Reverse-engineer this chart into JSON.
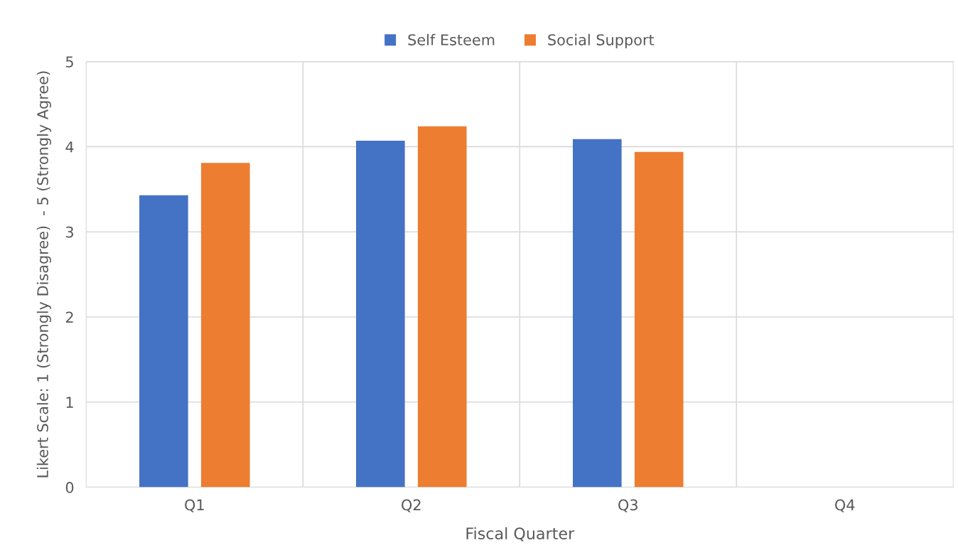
{
  "chart_data": {
    "type": "bar",
    "xlabel": "Fiscal Quarter",
    "ylabel": "Likert Scale: 1 (Strongly Disagree)  - 5 (Strongly Agree)",
    "categories": [
      "Q1",
      "Q2",
      "Q3",
      "Q4"
    ],
    "series": [
      {
        "name": "Self Esteem",
        "color": "#4472c4",
        "values": [
          3.43,
          4.07,
          4.09,
          null
        ]
      },
      {
        "name": "Social Support",
        "color": "#ed7d31",
        "values": [
          3.81,
          4.24,
          3.94,
          null
        ]
      }
    ],
    "ylim": [
      0,
      5
    ],
    "yticks": [
      0,
      1,
      2,
      3,
      4,
      5
    ],
    "grid": true,
    "legend": "top"
  }
}
